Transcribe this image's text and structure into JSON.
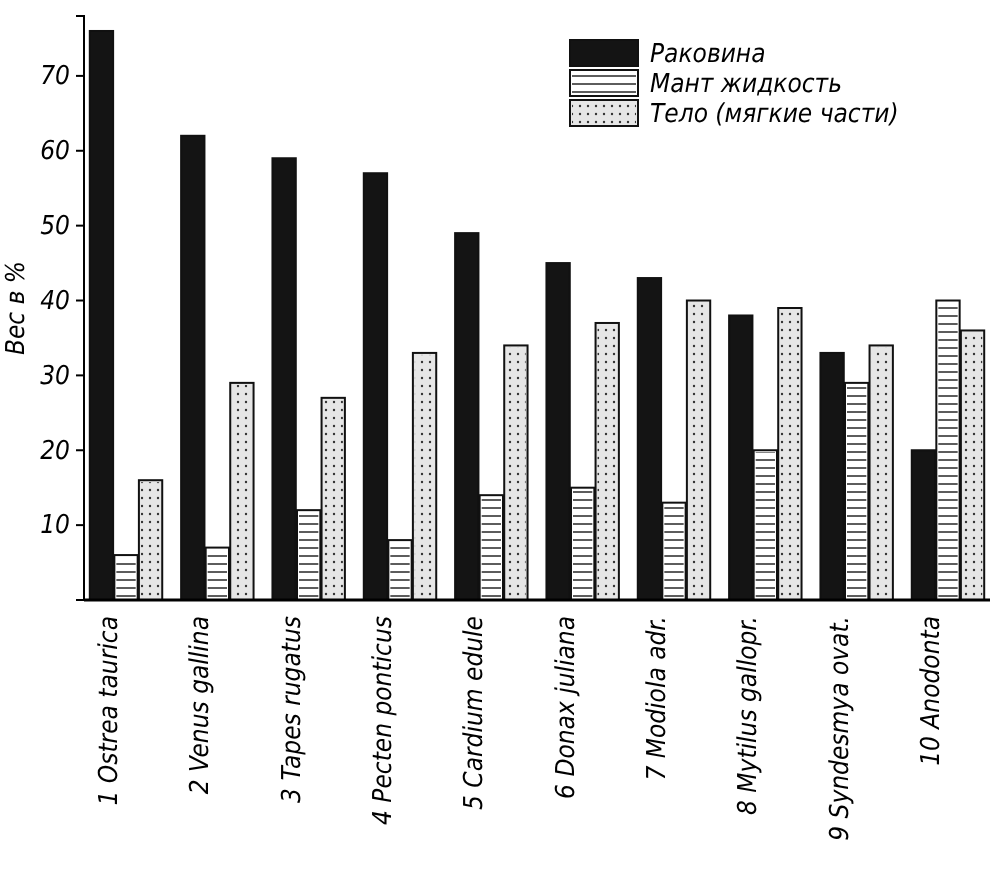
{
  "chart_data": {
    "type": "bar",
    "ylabel": "Вес в %",
    "categories": [
      "1 Ostrea taurica",
      "2 Venus gallina",
      "3 Tapes rugatus",
      "4 Pecten ponticus",
      "5 Cardium edule",
      "6 Donax juliana",
      "7 Modiola adr.",
      "8 Mytilus gallopr.",
      "9 Syndesmya ovat.",
      "10 Anodonta"
    ],
    "series": [
      {
        "name": "Раковина",
        "color": "#141414",
        "values": [
          76,
          62,
          59,
          57,
          49,
          45,
          43,
          38,
          33,
          20
        ]
      },
      {
        "name": "Мант жидкость",
        "color": "#ffffff",
        "values": [
          6,
          7,
          12,
          8,
          14,
          15,
          13,
          20,
          29,
          40
        ]
      },
      {
        "name": "Тело (мягкие части)",
        "color": "#e6e6e6",
        "values": [
          16,
          29,
          27,
          33,
          34,
          37,
          40,
          39,
          34,
          36
        ]
      }
    ],
    "ylim": [
      0,
      78
    ],
    "yticks": [
      {
        "value": 0,
        "label": null
      },
      10,
      20,
      30,
      40,
      50,
      60,
      70
    ],
    "grid": false,
    "legend": "top right"
  }
}
